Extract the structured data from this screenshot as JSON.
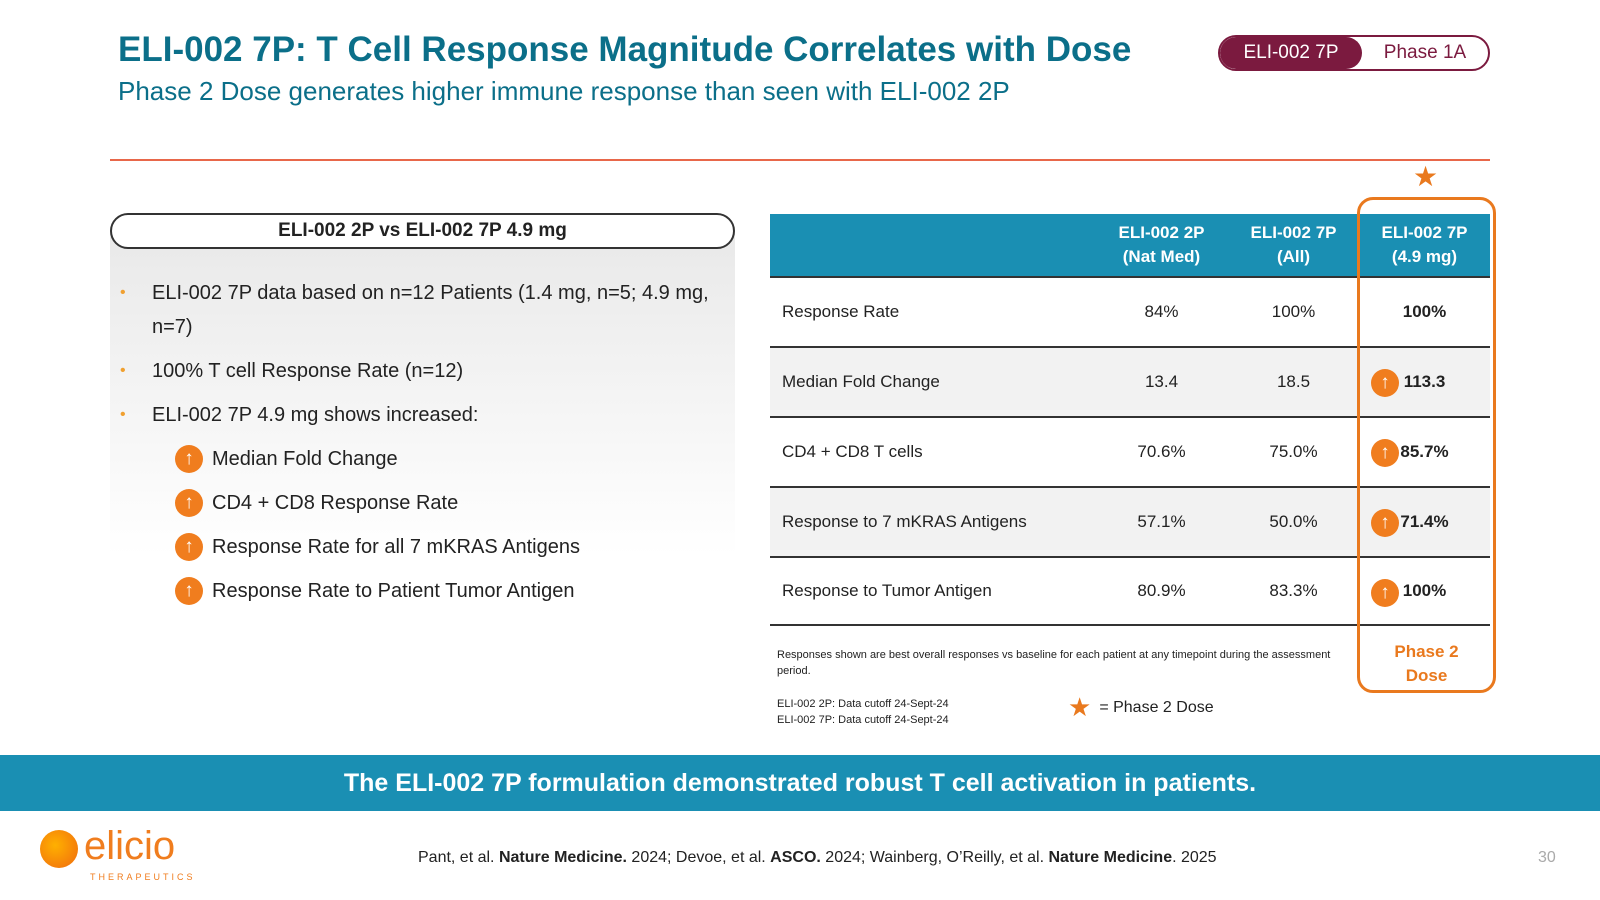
{
  "header": {
    "title": "ELI-002 7P: T Cell Response Magnitude Correlates with Dose",
    "subtitle": "Phase 2 Dose generates higher immune response than seen with ELI-002 2P",
    "pill_left": "ELI-002 7P",
    "pill_right": "Phase 1A"
  },
  "left": {
    "heading": "ELI-002 2P vs ELI-002 7P 4.9 mg",
    "bullet_glyph": "•",
    "bullets": [
      "ELI-002 7P data based on n=12 Patients (1.4 mg, n=5; 4.9 mg, n=7)",
      "100% T cell Response Rate (n=12)",
      "ELI-002 7P 4.9 mg shows increased:"
    ],
    "sub_items": [
      "Median Fold Change",
      "CD4 + CD8 Response Rate",
      "Response Rate for all 7 mKRAS Antigens",
      "Response Rate to Patient Tumor Antigen"
    ],
    "arrow_glyph": "↑"
  },
  "table": {
    "headers": [
      "",
      "ELI-002 2P\n(Nat Med)",
      "ELI-002 7P\n(All)",
      "ELI-002 7P\n(4.9 mg)"
    ],
    "rows": [
      {
        "label": "Response Rate",
        "v1": "84%",
        "v2": "100%",
        "v3": "100%"
      },
      {
        "label": "Median Fold Change",
        "v1": "13.4",
        "v2": "18.5",
        "v3": "113.3"
      },
      {
        "label": "CD4 + CD8 T cells",
        "v1": "70.6%",
        "v2": "75.0%",
        "v3": "85.7%"
      },
      {
        "label": "Response to 7 mKRAS Antigens",
        "v1": "57.1%",
        "v2": "50.0%",
        "v3": "71.4%"
      },
      {
        "label": "Response to Tumor Antigen",
        "v1": "80.9%",
        "v2": "83.3%",
        "v3": "100%"
      }
    ],
    "dose_label_1": "Phase 2",
    "dose_label_2": "Dose",
    "star_glyph": "★"
  },
  "notes": {
    "footnote": "Responses shown are best overall responses vs baseline for each patient at any timepoint during the assessment period.",
    "cutoff_2p": "ELI-002 2P: Data cutoff 24-Sept-24",
    "cutoff_7p": "ELI-002 7P: Data cutoff 24-Sept-24",
    "legend_text": "= Phase 2 Dose"
  },
  "banner": "The ELI-002 7P formulation demonstrated robust T cell activation in patients.",
  "footer": {
    "logo_word": "elicio",
    "logo_sub": "THERAPEUTICS",
    "cite_1": "Pant, et al. ",
    "cite_2": "Nature Medicine.",
    "cite_3": " 2024; Devoe, et al. ",
    "cite_4": "ASCO.",
    "cite_5": " 2024; Wainberg, O’Reilly, et al. ",
    "cite_6": "Nature Medicine",
    "cite_7": ". 2025",
    "page": "30"
  },
  "colors": {
    "title": "#0b6f89",
    "accent_orange": "#e9791e",
    "table_header": "#1a8fb3",
    "pill": "#7b1a3f"
  }
}
